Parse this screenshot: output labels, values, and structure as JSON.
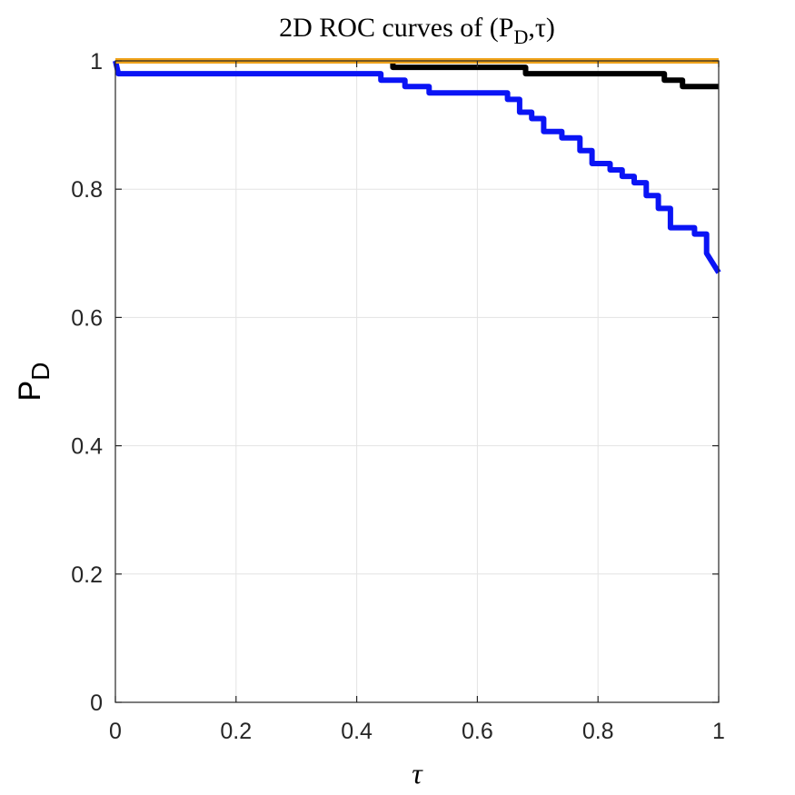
{
  "chart_data": {
    "type": "line",
    "title": "2D ROC curves of (P",
    "title_sub": "D",
    "title_suffix": ",τ)",
    "xlabel": "τ",
    "ylabel": "P",
    "ylabel_sub": "D",
    "xlim": [
      0,
      1
    ],
    "ylim": [
      0,
      1
    ],
    "xticks": [
      0,
      0.2,
      0.4,
      0.6,
      0.8,
      1
    ],
    "yticks": [
      0,
      0.2,
      0.4,
      0.6,
      0.8,
      1
    ],
    "xtick_labels": [
      "0",
      "0.2",
      "0.4",
      "0.6",
      "0.8",
      "1"
    ],
    "ytick_labels": [
      "0",
      "0.2",
      "0.4",
      "0.6",
      "0.8",
      "1"
    ],
    "grid": true,
    "series": [
      {
        "color": "#f0a31a",
        "x": [
          0,
          1
        ],
        "y": [
          1,
          1
        ]
      },
      {
        "color": "#000000",
        "x": [
          0.46,
          0.46,
          0.68,
          0.68,
          0.91,
          0.91,
          0.94,
          0.94,
          1.0
        ],
        "y": [
          1.0,
          0.99,
          0.99,
          0.98,
          0.98,
          0.97,
          0.97,
          0.96,
          0.96
        ]
      },
      {
        "color": "#0a14f5",
        "x": [
          0,
          0.005,
          0.44,
          0.44,
          0.48,
          0.48,
          0.52,
          0.52,
          0.65,
          0.65,
          0.67,
          0.67,
          0.69,
          0.69,
          0.71,
          0.71,
          0.74,
          0.74,
          0.77,
          0.77,
          0.79,
          0.79,
          0.82,
          0.82,
          0.84,
          0.84,
          0.86,
          0.86,
          0.88,
          0.88,
          0.9,
          0.9,
          0.92,
          0.92,
          0.96,
          0.96,
          0.98,
          0.98,
          1.0
        ],
        "y": [
          1.0,
          0.98,
          0.98,
          0.97,
          0.97,
          0.96,
          0.96,
          0.95,
          0.95,
          0.94,
          0.94,
          0.92,
          0.92,
          0.91,
          0.91,
          0.89,
          0.89,
          0.88,
          0.88,
          0.86,
          0.86,
          0.84,
          0.84,
          0.83,
          0.83,
          0.82,
          0.82,
          0.81,
          0.81,
          0.79,
          0.79,
          0.77,
          0.77,
          0.74,
          0.74,
          0.73,
          0.73,
          0.7,
          0.67
        ]
      }
    ]
  }
}
